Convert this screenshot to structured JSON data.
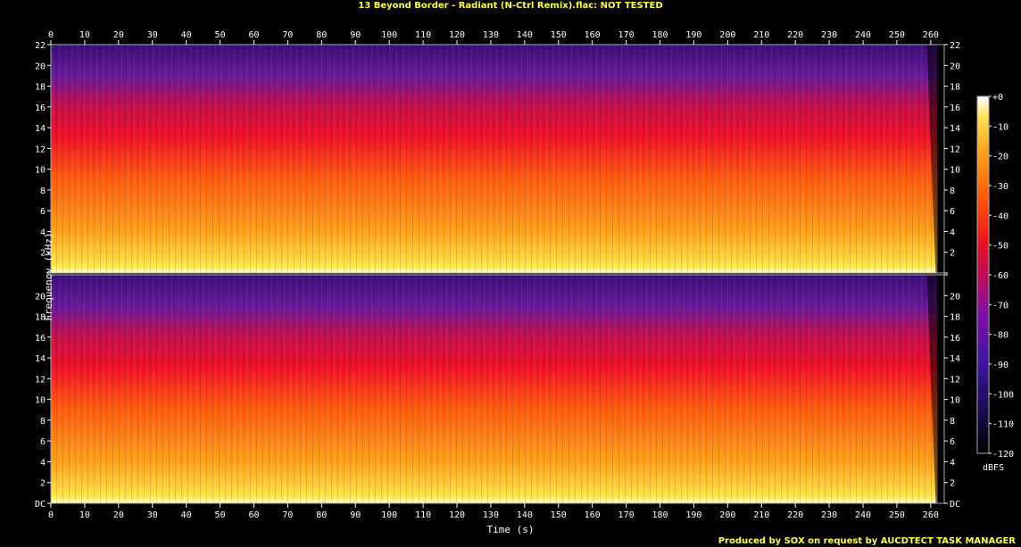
{
  "title": "13 Beyond Border - Radiant (N-Ctrl Remix).flac: NOT TESTED",
  "footer": "Produced by SOX on request by AUCDTECT TASK MANAGER",
  "chart_data": {
    "type": "heatmap",
    "title": "13 Beyond Border - Radiant (N-Ctrl Remix).flac: NOT TESTED",
    "xlabel": "Time (s)",
    "ylabel": "Frequency (kHz)",
    "x_ticks": [
      "0",
      "10",
      "20",
      "30",
      "40",
      "50",
      "60",
      "70",
      "80",
      "90",
      "100",
      "110",
      "120",
      "130",
      "140",
      "150",
      "160",
      "170",
      "180",
      "190",
      "200",
      "210",
      "220",
      "230",
      "240",
      "250",
      "260"
    ],
    "xlim": [
      0,
      264
    ],
    "channels": 2,
    "y_ticks": [
      "DC",
      "2",
      "4",
      "6",
      "8",
      "10",
      "12",
      "14",
      "16",
      "18",
      "20",
      "22"
    ],
    "ylim_khz": [
      0,
      22
    ],
    "signal_end_s": 262,
    "colorbar": {
      "label": "dBFS",
      "ticks": [
        "+0",
        "-10",
        "-20",
        "-30",
        "-40",
        "-50",
        "-60",
        "-70",
        "-80",
        "-90",
        "-100",
        "-110",
        "-120"
      ],
      "range_db": [
        -120,
        0
      ]
    },
    "grid": false
  }
}
